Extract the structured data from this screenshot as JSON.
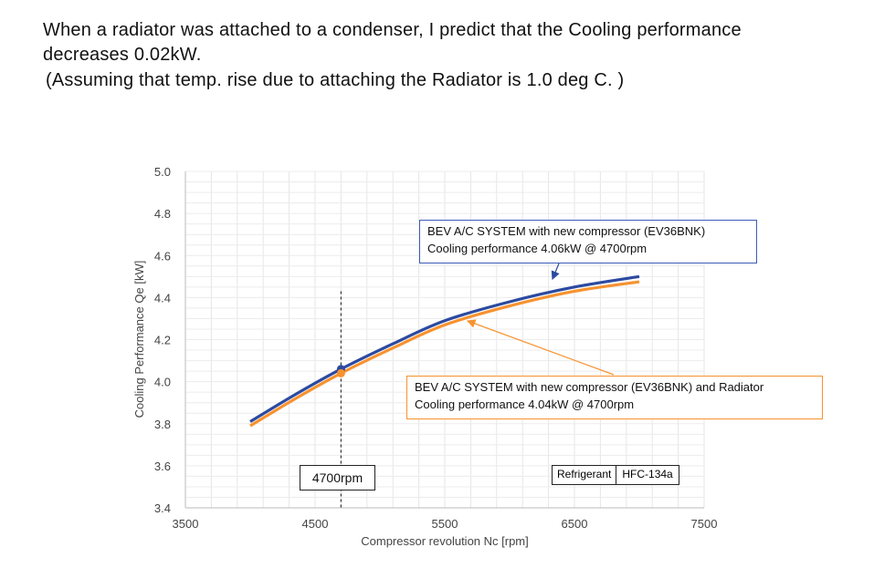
{
  "heading": {
    "line1": "When a radiator was attached to a condenser, I predict that the Cooling performance",
    "line2": "decreases 0.02kW.",
    "line3": "(Assuming that temp. rise due to attaching the Radiator is 1.0 deg C. )"
  },
  "colors": {
    "blue": "#2c4aa0",
    "orange": "#f7922f",
    "grid": "#dcdcdc",
    "axis_text": "#444444"
  },
  "chart_data": {
    "type": "line",
    "title": "",
    "xlabel": "Compressor revolution  Nc [rpm]",
    "ylabel": "Cooling Performance Qe [kW]",
    "xlim": [
      3500,
      7500
    ],
    "ylim": [
      3.4,
      5.0
    ],
    "xticks": [
      "3500",
      "4500",
      "5500",
      "6500",
      "7500"
    ],
    "yticks": [
      "3.4",
      "3.6",
      "3.8",
      "4.0",
      "4.2",
      "4.4",
      "4.6",
      "4.8",
      "5.0"
    ],
    "grid": true,
    "series": [
      {
        "name": "BEV A/C SYSTEM with new compressor (EV36BNK)",
        "color": "#2c4aa0",
        "x": [
          4000,
          4350,
          4700,
          5100,
          5500,
          6000,
          6500,
          7000
        ],
        "y": [
          3.81,
          3.94,
          4.06,
          4.18,
          4.29,
          4.38,
          4.45,
          4.5
        ],
        "marker": {
          "x": 4700,
          "y": 4.06
        }
      },
      {
        "name": "BEV A/C SYSTEM with new compressor (EV36BNK) and Radiator",
        "color": "#f7922f",
        "x": [
          4000,
          4350,
          4700,
          5100,
          5500,
          6000,
          6500,
          7000
        ],
        "y": [
          3.79,
          3.92,
          4.04,
          4.16,
          4.27,
          4.36,
          4.43,
          4.475
        ],
        "marker": {
          "x": 4700,
          "y": 4.04
        }
      }
    ],
    "reference_line": {
      "x": 4700,
      "label": "4700rpm"
    },
    "annotations": [
      {
        "line1": "BEV A/C SYSTEM with new compressor (EV36BNK)",
        "line2": "Cooling performance 4.06kW  @ 4700rpm"
      },
      {
        "line1": "BEV A/C SYSTEM with new compressor (EV36BNK) and Radiator",
        "line2": "Cooling performance 4.04kW  @ 4700rpm"
      }
    ],
    "refrigerant": {
      "label": "Refrigerant",
      "value": "HFC-134a"
    }
  }
}
